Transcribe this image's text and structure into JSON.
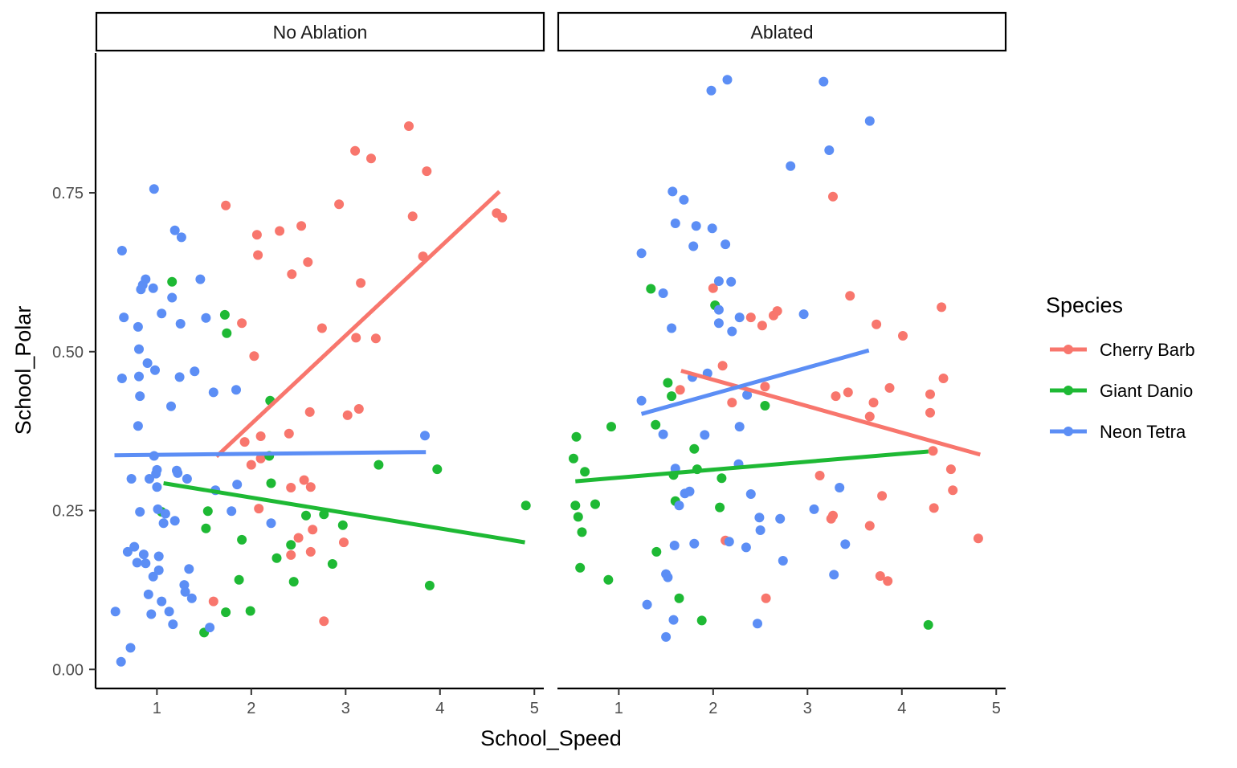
{
  "chart_data": {
    "type": "scatter",
    "facets": [
      "No Ablation",
      "Ablated"
    ],
    "xlabel": "School_Speed",
    "ylabel": "School_Polar",
    "xlim": [
      0.35,
      5.1
    ],
    "ylim": [
      -0.03,
      0.97
    ],
    "xticks": [
      1,
      2,
      3,
      4,
      5
    ],
    "xtick_labels": [
      "1",
      "2",
      "3",
      "4",
      "5"
    ],
    "yticks": [
      0,
      0.25,
      0.5,
      0.75
    ],
    "ytick_labels": [
      "0.00",
      "0.25",
      "0.50",
      "0.75"
    ],
    "grid": false,
    "legend": {
      "title": "Species",
      "position": "right",
      "entries": [
        "Cherry Barb",
        "Giant Danio",
        "Neon Tetra"
      ]
    },
    "series": [
      {
        "name": "Cherry Barb",
        "color": "#F8766D",
        "points": {
          "No Ablation": [
            [
              1.6,
              0.107
            ],
            [
              1.73,
              0.73
            ],
            [
              1.9,
              0.545
            ],
            [
              1.93,
              0.358
            ],
            [
              2.0,
              0.322
            ],
            [
              2.03,
              0.493
            ],
            [
              2.06,
              0.684
            ],
            [
              2.07,
              0.652
            ],
            [
              2.08,
              0.253
            ],
            [
              2.1,
              0.367
            ],
            [
              2.1,
              0.332
            ],
            [
              2.3,
              0.69
            ],
            [
              2.4,
              0.371
            ],
            [
              2.42,
              0.18
            ],
            [
              2.42,
              0.286
            ],
            [
              2.43,
              0.622
            ],
            [
              2.5,
              0.207
            ],
            [
              2.53,
              0.698
            ],
            [
              2.56,
              0.298
            ],
            [
              2.6,
              0.641
            ],
            [
              2.62,
              0.405
            ],
            [
              2.63,
              0.287
            ],
            [
              2.63,
              0.185
            ],
            [
              2.65,
              0.22
            ],
            [
              2.75,
              0.537
            ],
            [
              2.77,
              0.076
            ],
            [
              2.93,
              0.732
            ],
            [
              2.98,
              0.2
            ],
            [
              3.02,
              0.4
            ],
            [
              3.1,
              0.816
            ],
            [
              3.11,
              0.522
            ],
            [
              3.14,
              0.41
            ],
            [
              3.16,
              0.608
            ],
            [
              3.27,
              0.804
            ],
            [
              3.32,
              0.521
            ],
            [
              3.67,
              0.855
            ],
            [
              3.71,
              0.713
            ],
            [
              3.82,
              0.65
            ],
            [
              3.86,
              0.784
            ],
            [
              4.6,
              0.718
            ],
            [
              4.66,
              0.711
            ]
          ],
          "Ablated": [
            [
              1.65,
              0.44
            ],
            [
              2.0,
              0.6
            ],
            [
              2.1,
              0.478
            ],
            [
              2.13,
              0.203
            ],
            [
              2.2,
              0.42
            ],
            [
              2.4,
              0.554
            ],
            [
              2.52,
              0.541
            ],
            [
              2.55,
              0.445
            ],
            [
              2.56,
              0.112
            ],
            [
              2.64,
              0.557
            ],
            [
              2.68,
              0.564
            ],
            [
              3.13,
              0.305
            ],
            [
              3.25,
              0.237
            ],
            [
              3.27,
              0.744
            ],
            [
              3.27,
              0.242
            ],
            [
              3.3,
              0.43
            ],
            [
              3.43,
              0.436
            ],
            [
              3.45,
              0.588
            ],
            [
              3.66,
              0.226
            ],
            [
              3.7,
              0.42
            ],
            [
              3.73,
              0.543
            ],
            [
              3.77,
              0.147
            ],
            [
              3.79,
              0.273
            ],
            [
              3.85,
              0.139
            ],
            [
              3.87,
              0.443
            ],
            [
              4.01,
              0.525
            ],
            [
              4.3,
              0.433
            ],
            [
              4.3,
              0.404
            ],
            [
              4.33,
              0.344
            ],
            [
              4.34,
              0.254
            ],
            [
              4.42,
              0.57
            ],
            [
              4.44,
              0.458
            ],
            [
              4.52,
              0.315
            ],
            [
              4.54,
              0.282
            ],
            [
              4.81,
              0.206
            ],
            [
              3.66,
              0.398
            ]
          ]
        },
        "trend": {
          "No Ablation": [
            [
              1.63,
              0.335
            ],
            [
              4.63,
              0.752
            ]
          ],
          "Ablated": [
            [
              1.66,
              0.47
            ],
            [
              4.83,
              0.338
            ]
          ]
        }
      },
      {
        "name": "Giant Danio",
        "color": "#1EB934",
        "points": {
          "No Ablation": [
            [
              1.05,
              0.248
            ],
            [
              1.16,
              0.61
            ],
            [
              1.5,
              0.058
            ],
            [
              1.52,
              0.222
            ],
            [
              1.54,
              0.249
            ],
            [
              1.72,
              0.558
            ],
            [
              1.73,
              0.09
            ],
            [
              1.74,
              0.529
            ],
            [
              1.87,
              0.141
            ],
            [
              1.9,
              0.204
            ],
            [
              1.99,
              0.092
            ],
            [
              2.2,
              0.423
            ],
            [
              2.19,
              0.336
            ],
            [
              2.21,
              0.293
            ],
            [
              2.27,
              0.175
            ],
            [
              2.42,
              0.196
            ],
            [
              2.45,
              0.138
            ],
            [
              2.58,
              0.242
            ],
            [
              2.77,
              0.244
            ],
            [
              2.86,
              0.166
            ],
            [
              2.97,
              0.227
            ],
            [
              3.35,
              0.322
            ],
            [
              3.89,
              0.132
            ],
            [
              3.97,
              0.315
            ],
            [
              4.91,
              0.258
            ]
          ],
          "Ablated": [
            [
              0.52,
              0.332
            ],
            [
              0.54,
              0.258
            ],
            [
              0.55,
              0.366
            ],
            [
              0.57,
              0.24
            ],
            [
              0.59,
              0.16
            ],
            [
              0.61,
              0.216
            ],
            [
              0.64,
              0.311
            ],
            [
              0.75,
              0.26
            ],
            [
              0.89,
              0.141
            ],
            [
              0.92,
              0.382
            ],
            [
              1.34,
              0.599
            ],
            [
              1.39,
              0.385
            ],
            [
              1.4,
              0.185
            ],
            [
              1.52,
              0.451
            ],
            [
              1.56,
              0.43
            ],
            [
              1.58,
              0.306
            ],
            [
              1.6,
              0.265
            ],
            [
              1.64,
              0.112
            ],
            [
              1.8,
              0.347
            ],
            [
              1.83,
              0.315
            ],
            [
              1.88,
              0.077
            ],
            [
              2.02,
              0.573
            ],
            [
              2.07,
              0.255
            ],
            [
              2.09,
              0.301
            ],
            [
              2.55,
              0.415
            ],
            [
              4.28,
              0.07
            ]
          ]
        },
        "trend": {
          "No Ablation": [
            [
              1.07,
              0.293
            ],
            [
              4.9,
              0.2
            ]
          ],
          "Ablated": [
            [
              0.54,
              0.296
            ],
            [
              4.28,
              0.343
            ]
          ]
        }
      },
      {
        "name": "Neon Tetra",
        "color": "#5C8EF5",
        "points": {
          "No Ablation": [
            [
              0.56,
              0.091
            ],
            [
              0.62,
              0.012
            ],
            [
              0.63,
              0.458
            ],
            [
              0.63,
              0.659
            ],
            [
              0.65,
              0.554
            ],
            [
              0.69,
              0.185
            ],
            [
              0.72,
              0.034
            ],
            [
              0.73,
              0.3
            ],
            [
              0.76,
              0.193
            ],
            [
              0.79,
              0.168
            ],
            [
              0.8,
              0.539
            ],
            [
              0.8,
              0.383
            ],
            [
              0.81,
              0.504
            ],
            [
              0.81,
              0.461
            ],
            [
              0.82,
              0.43
            ],
            [
              0.82,
              0.248
            ],
            [
              0.83,
              0.598
            ],
            [
              0.85,
              0.605
            ],
            [
              0.86,
              0.181
            ],
            [
              0.88,
              0.167
            ],
            [
              0.88,
              0.614
            ],
            [
              0.9,
              0.482
            ],
            [
              0.91,
              0.118
            ],
            [
              0.92,
              0.3
            ],
            [
              0.94,
              0.087
            ],
            [
              0.96,
              0.6
            ],
            [
              0.96,
              0.146
            ],
            [
              0.97,
              0.756
            ],
            [
              0.97,
              0.336
            ],
            [
              0.98,
              0.471
            ],
            [
              0.99,
              0.308
            ],
            [
              1.0,
              0.314
            ],
            [
              1.0,
              0.287
            ],
            [
              1.01,
              0.252
            ],
            [
              1.02,
              0.178
            ],
            [
              1.02,
              0.156
            ],
            [
              1.05,
              0.56
            ],
            [
              1.05,
              0.107
            ],
            [
              1.07,
              0.23
            ],
            [
              1.09,
              0.245
            ],
            [
              1.13,
              0.091
            ],
            [
              1.15,
              0.414
            ],
            [
              1.16,
              0.585
            ],
            [
              1.17,
              0.071
            ],
            [
              1.19,
              0.691
            ],
            [
              1.19,
              0.234
            ],
            [
              1.21,
              0.313
            ],
            [
              1.22,
              0.309
            ],
            [
              1.24,
              0.46
            ],
            [
              1.25,
              0.544
            ],
            [
              1.26,
              0.68
            ],
            [
              1.29,
              0.133
            ],
            [
              1.3,
              0.122
            ],
            [
              1.32,
              0.3
            ],
            [
              1.34,
              0.158
            ],
            [
              1.37,
              0.112
            ],
            [
              1.4,
              0.469
            ],
            [
              1.46,
              0.614
            ],
            [
              1.52,
              0.553
            ],
            [
              1.56,
              0.066
            ],
            [
              1.6,
              0.436
            ],
            [
              1.62,
              0.282
            ],
            [
              1.79,
              0.249
            ],
            [
              1.84,
              0.44
            ],
            [
              1.85,
              0.291
            ],
            [
              2.21,
              0.23
            ],
            [
              3.84,
              0.368
            ]
          ],
          "Ablated": [
            [
              1.24,
              0.423
            ],
            [
              1.24,
              0.655
            ],
            [
              1.3,
              0.102
            ],
            [
              1.47,
              0.592
            ],
            [
              1.47,
              0.37
            ],
            [
              1.5,
              0.15
            ],
            [
              1.5,
              0.051
            ],
            [
              1.52,
              0.145
            ],
            [
              1.56,
              0.537
            ],
            [
              1.57,
              0.752
            ],
            [
              1.58,
              0.078
            ],
            [
              1.59,
              0.195
            ],
            [
              1.6,
              0.316
            ],
            [
              1.6,
              0.702
            ],
            [
              1.64,
              0.258
            ],
            [
              1.69,
              0.739
            ],
            [
              1.7,
              0.277
            ],
            [
              1.75,
              0.28
            ],
            [
              1.78,
              0.46
            ],
            [
              1.79,
              0.666
            ],
            [
              1.8,
              0.198
            ],
            [
              1.82,
              0.698
            ],
            [
              1.91,
              0.369
            ],
            [
              1.94,
              0.466
            ],
            [
              1.98,
              0.911
            ],
            [
              1.99,
              0.694
            ],
            [
              2.06,
              0.545
            ],
            [
              2.06,
              0.611
            ],
            [
              2.06,
              0.566
            ],
            [
              2.13,
              0.669
            ],
            [
              2.15,
              0.928
            ],
            [
              2.17,
              0.201
            ],
            [
              2.19,
              0.61
            ],
            [
              2.2,
              0.532
            ],
            [
              2.27,
              0.323
            ],
            [
              2.28,
              0.554
            ],
            [
              2.28,
              0.382
            ],
            [
              2.35,
              0.192
            ],
            [
              2.36,
              0.432
            ],
            [
              2.4,
              0.276
            ],
            [
              2.47,
              0.072
            ],
            [
              2.49,
              0.239
            ],
            [
              2.5,
              0.219
            ],
            [
              2.71,
              0.237
            ],
            [
              2.74,
              0.171
            ],
            [
              2.82,
              0.792
            ],
            [
              2.96,
              0.559
            ],
            [
              3.07,
              0.252
            ],
            [
              3.17,
              0.925
            ],
            [
              3.23,
              0.817
            ],
            [
              3.28,
              0.149
            ],
            [
              3.34,
              0.286
            ],
            [
              3.4,
              0.197
            ],
            [
              3.66,
              0.863
            ]
          ]
        },
        "trend": {
          "No Ablation": [
            [
              0.55,
              0.337
            ],
            [
              3.85,
              0.342
            ]
          ],
          "Ablated": [
            [
              1.24,
              0.402
            ],
            [
              3.65,
              0.502
            ]
          ]
        }
      }
    ]
  }
}
